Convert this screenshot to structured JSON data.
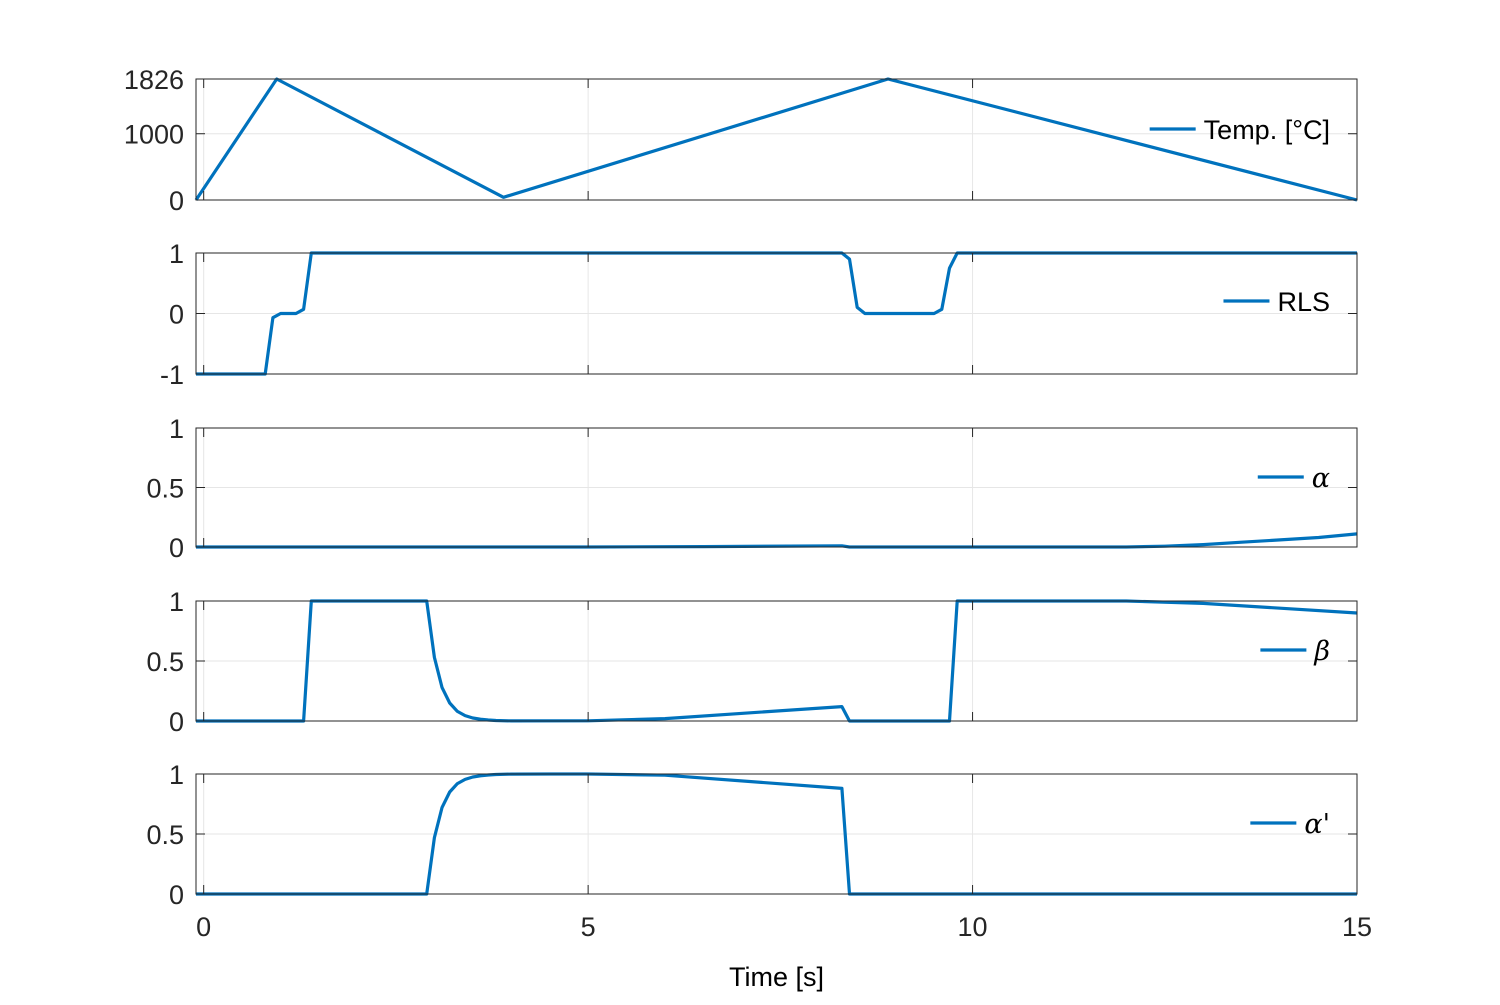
{
  "chart_data": [
    {
      "type": "line",
      "legend": "Temp. [°C]",
      "legend_loc": "right",
      "ylim": [
        0,
        1826
      ],
      "yticks": [
        0,
        1000,
        1826
      ],
      "ytick_labels": [
        "0",
        "1000",
        "1826"
      ],
      "xlim": [
        -0.1,
        15
      ],
      "grid": true,
      "color": "#0072BD",
      "series": [
        {
          "x": [
            -0.1,
            0.95,
            3.9,
            8.9,
            15
          ],
          "y": [
            0,
            1826,
            40,
            1826,
            0
          ]
        }
      ]
    },
    {
      "type": "line",
      "legend": "RLS",
      "legend_loc": "right",
      "ylim": [
        -1,
        1
      ],
      "yticks": [
        -1,
        0,
        1
      ],
      "ytick_labels": [
        "-1",
        "0",
        "1"
      ],
      "xlim": [
        -0.1,
        15
      ],
      "grid": true,
      "color": "#0072BD",
      "series": [
        {
          "x": [
            -0.1,
            0.8,
            0.9,
            1.0,
            1.2,
            1.3,
            1.4,
            8.3,
            8.4,
            8.5,
            8.6,
            9.5,
            9.6,
            9.7,
            9.8,
            15
          ],
          "y": [
            -1,
            -1,
            -0.07,
            0,
            0,
            0.07,
            1,
            1,
            0.9,
            0.1,
            0,
            0,
            0.07,
            0.75,
            1,
            1
          ]
        }
      ]
    },
    {
      "type": "line",
      "legend": "α",
      "legend_loc": "right",
      "ylim": [
        0,
        1
      ],
      "yticks": [
        0,
        0.5,
        1
      ],
      "ytick_labels": [
        "0",
        "0.5",
        "1"
      ],
      "xlim": [
        -0.1,
        15
      ],
      "grid": true,
      "color": "#0072BD",
      "series": [
        {
          "x": [
            -0.1,
            5.0,
            6.5,
            8.3,
            8.4,
            12.0,
            12.5,
            13.0,
            13.5,
            14.0,
            14.5,
            15.0
          ],
          "y": [
            0,
            0,
            0.003,
            0.01,
            0,
            0,
            0.007,
            0.02,
            0.04,
            0.06,
            0.08,
            0.11
          ]
        }
      ]
    },
    {
      "type": "line",
      "legend": "β",
      "legend_loc": "right",
      "ylim": [
        0,
        1
      ],
      "yticks": [
        0,
        0.5,
        1
      ],
      "ytick_labels": [
        "0",
        "0.5",
        "1"
      ],
      "xlim": [
        -0.1,
        15
      ],
      "grid": true,
      "color": "#0072BD",
      "series": [
        {
          "x": [
            -0.1,
            1.3,
            1.4,
            2.9,
            3.0,
            3.1,
            3.2,
            3.3,
            3.4,
            3.5,
            3.6,
            3.7,
            3.8,
            4.0,
            5.0,
            6.0,
            8.3,
            8.4,
            9.7,
            9.8,
            12.0,
            13.0,
            14.0,
            15.0
          ],
          "y": [
            0,
            0,
            1,
            1,
            0.53,
            0.28,
            0.15,
            0.08,
            0.045,
            0.025,
            0.015,
            0.008,
            0.004,
            0.001,
            0.002,
            0.02,
            0.12,
            0,
            0,
            1,
            1,
            0.98,
            0.94,
            0.9
          ]
        }
      ]
    },
    {
      "type": "line",
      "legend": "α'",
      "legend_loc": "right",
      "ylim": [
        0,
        1
      ],
      "yticks": [
        0,
        0.5,
        1
      ],
      "ytick_labels": [
        "0",
        "0.5",
        "1"
      ],
      "xlim": [
        -0.1,
        15
      ],
      "grid": true,
      "xticks": [
        0,
        5,
        10,
        15
      ],
      "xtick_labels": [
        "0",
        "5",
        "10",
        "15"
      ],
      "xlabel": "Time [s]",
      "color": "#0072BD",
      "series": [
        {
          "x": [
            -0.1,
            2.9,
            3.0,
            3.1,
            3.2,
            3.3,
            3.4,
            3.5,
            3.6,
            3.7,
            3.8,
            4.0,
            4.5,
            5.0,
            6.0,
            8.3,
            8.4,
            15.0
          ],
          "y": [
            0,
            0,
            0.47,
            0.72,
            0.85,
            0.92,
            0.955,
            0.975,
            0.985,
            0.992,
            0.996,
            0.999,
            1,
            1,
            0.99,
            0.88,
            0,
            0
          ]
        }
      ]
    }
  ]
}
